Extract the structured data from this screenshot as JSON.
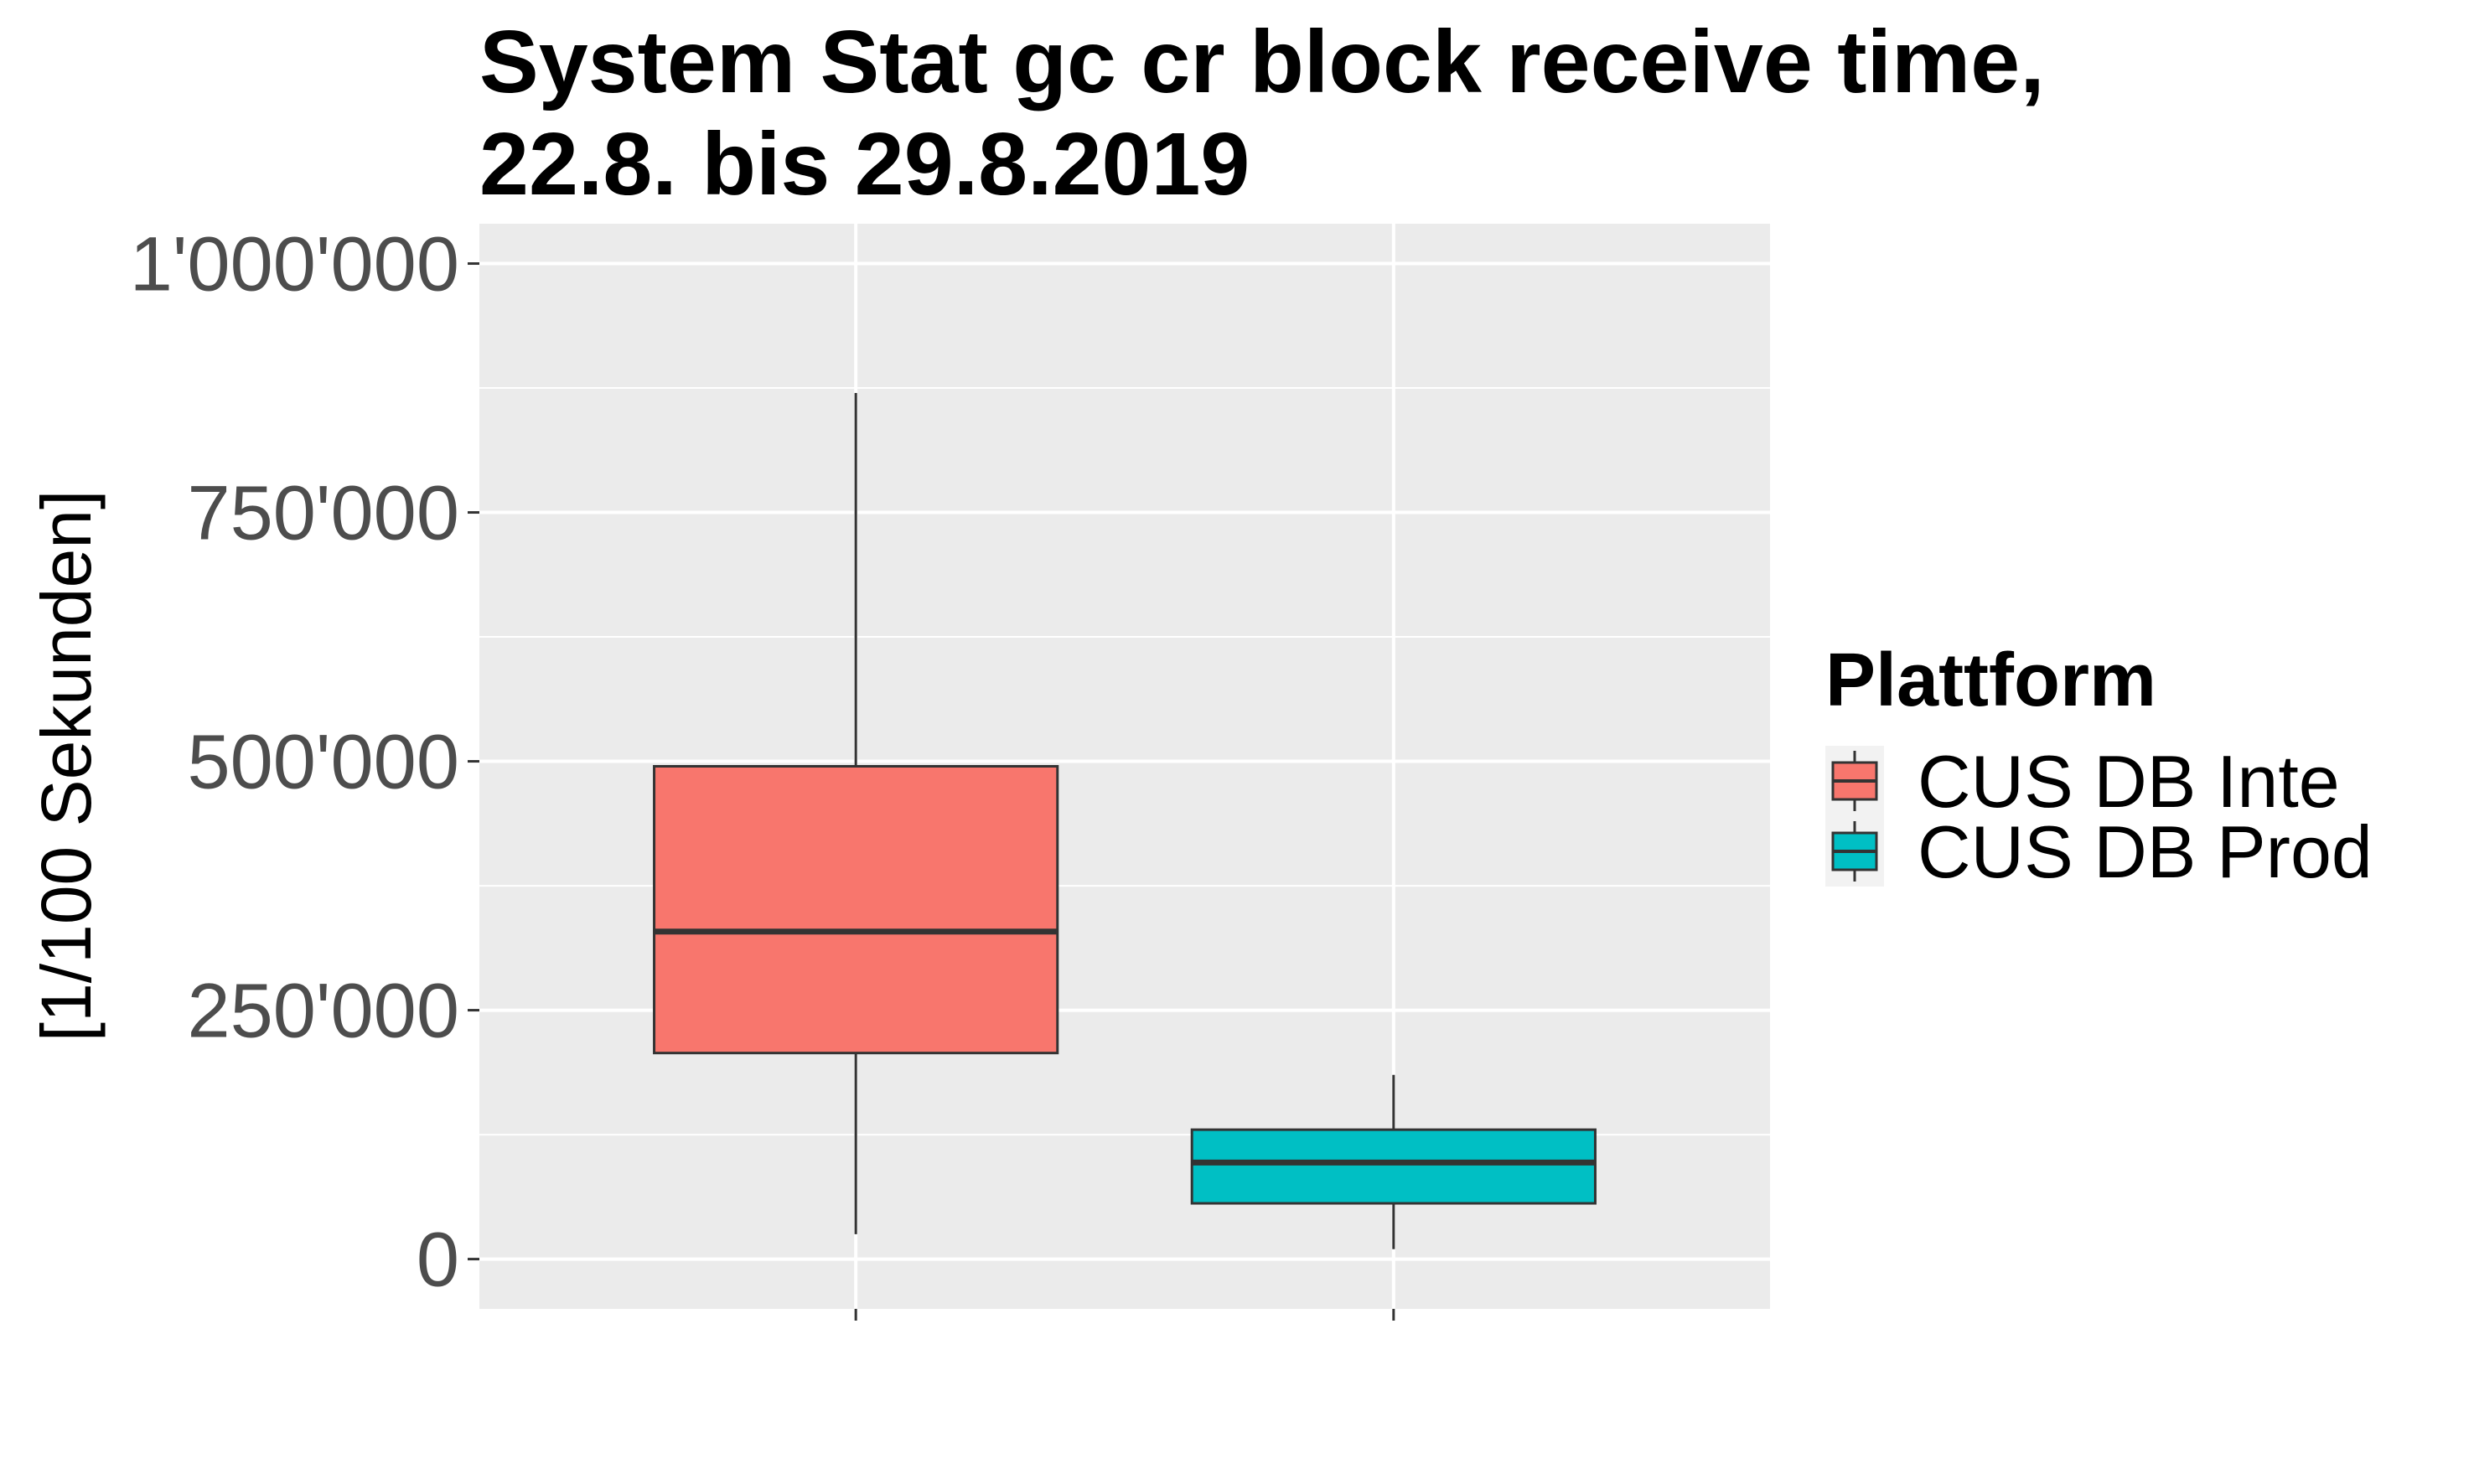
{
  "chart_data": {
    "type": "boxplot",
    "title": [
      "System Stat gc cr block receive time,",
      "22.8. bis 29.8.2019"
    ],
    "xlabel": "",
    "ylabel": "[1/100 Sekunden]",
    "ylim": [
      -50000,
      1040000
    ],
    "yticks": [
      0,
      250000,
      500000,
      750000,
      1000000
    ],
    "ytick_labels": [
      "0",
      "250'000",
      "500'000",
      "750'000",
      "1'000'000"
    ],
    "grid": true,
    "legend": {
      "title": "Plattform",
      "position": "right"
    },
    "series": [
      {
        "name": "CUS DB Inte",
        "color": "#F8766D",
        "min": 25000,
        "q1": 207000,
        "median": 329000,
        "q3": 495000,
        "max": 870000
      },
      {
        "name": "CUS DB Prod",
        "color": "#00BFC4",
        "min": 10000,
        "q1": 56000,
        "median": 97000,
        "q3": 130000,
        "max": 185000
      }
    ]
  }
}
